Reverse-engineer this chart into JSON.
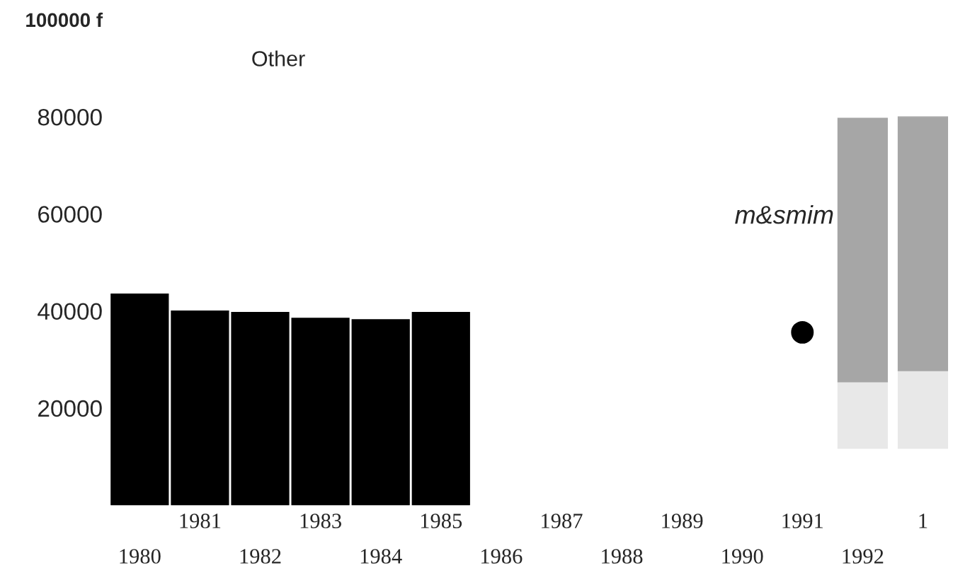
{
  "chart_data": {
    "type": "bar",
    "title": "Other",
    "categories": [
      "1980",
      "1981",
      "1982",
      "1983",
      "1984",
      "1985",
      "1986",
      "1987",
      "1988",
      "1989",
      "1990",
      "1991",
      "1992",
      "1"
    ],
    "series": [
      {
        "color": "#000000",
        "values": [
          43500,
          40000,
          39700,
          38500,
          38200,
          39700,
          null,
          null,
          null,
          null,
          null,
          null,
          null,
          null
        ]
      },
      {
        "color": "#e8e8e8",
        "base": [
          null,
          null,
          null,
          null,
          null,
          null,
          null,
          null,
          null,
          null,
          null,
          null,
          11700,
          11700
        ],
        "values": [
          null,
          null,
          null,
          null,
          null,
          null,
          null,
          null,
          null,
          null,
          null,
          null,
          13700,
          16000
        ]
      },
      {
        "color": "#a6a6a6",
        "base": [
          null,
          null,
          null,
          null,
          null,
          null,
          null,
          null,
          null,
          null,
          null,
          null,
          25400,
          27700
        ],
        "values": [
          null,
          null,
          null,
          null,
          null,
          null,
          null,
          null,
          null,
          null,
          null,
          null,
          54300,
          52300
        ]
      },
      {
        "type": "scatter",
        "color": "#000000",
        "values": [
          null,
          null,
          null,
          null,
          null,
          null,
          null,
          null,
          null,
          null,
          null,
          35600,
          null,
          null
        ]
      }
    ],
    "ylim": [
      0,
      100000
    ],
    "yticks": [
      20000,
      40000,
      60000,
      80000,
      {
        "value": 100000,
        "label": "100000 f"
      }
    ],
    "annotations": [
      "m&smim"
    ],
    "grid": false,
    "legend": false
  }
}
